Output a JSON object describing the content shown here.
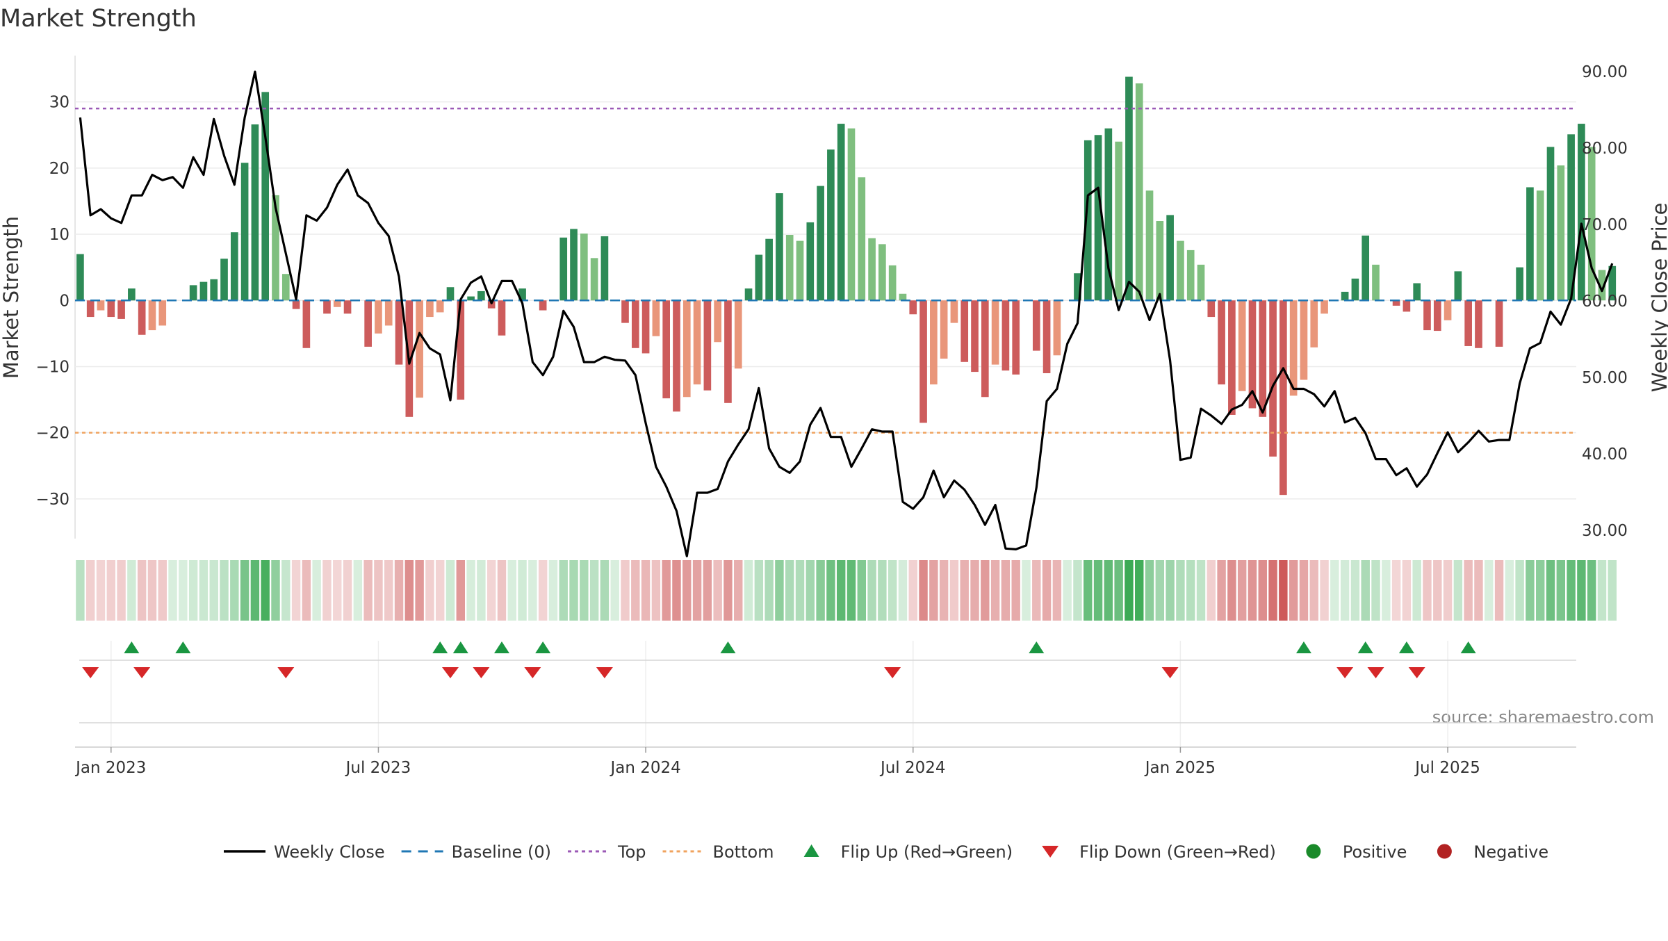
{
  "chart_data": {
    "type": "bar",
    "title": "Market Strength",
    "ylabel_left": "Market Strength",
    "ylabel_right": "Weekly Close Price",
    "left_ylim": [
      -36,
      37
    ],
    "left_ticks": [
      30,
      20,
      10,
      0,
      -10,
      -20,
      -30
    ],
    "left_tick_labels": [
      "30",
      "20",
      "10",
      "0",
      "−10",
      "−20",
      "−30"
    ],
    "right_ylim": [
      28.9,
      92.1
    ],
    "right_ticks": [
      90,
      80,
      70,
      60,
      50,
      40,
      30
    ],
    "right_tick_labels": [
      "90.00",
      "80.00",
      "70.00",
      "60.00",
      "50.00",
      "40.00",
      "30.00"
    ],
    "top_level": 29,
    "bottom_level": -20,
    "week_index_range": [
      -0.5,
      145.5
    ],
    "x_ticks": [
      {
        "label": "Jan 2023",
        "week": 3
      },
      {
        "label": "Jul 2023",
        "week": 29
      },
      {
        "label": "Jan 2024",
        "week": 55
      },
      {
        "label": "Jul 2024",
        "week": 81
      },
      {
        "label": "Jan 2025",
        "week": 107
      },
      {
        "label": "Jul 2025",
        "week": 133
      }
    ],
    "strength": [
      7,
      -2.5,
      -1.5,
      -2.5,
      -2.8,
      1.8,
      -5.2,
      -4.5,
      -3.8,
      0,
      0,
      2.3,
      2.8,
      3.2,
      6.3,
      10.3,
      20.8,
      26.6,
      31.5,
      15.9,
      4,
      -1.3,
      -7.2,
      0,
      -2,
      -1,
      -2,
      0,
      -7,
      -5,
      -3.8,
      -9.7,
      -17.6,
      -14.7,
      -2.5,
      -1.8,
      2,
      -15,
      0.6,
      1.4,
      -1.2,
      -5.3,
      0,
      1.8,
      0,
      -1.5,
      0,
      9.5,
      10.8,
      10.1,
      6.4,
      9.7,
      0,
      -3.4,
      -7.2,
      -8,
      -5.4,
      -14.8,
      -16.8,
      -14.6,
      -12.7,
      -13.6,
      -6.3,
      -15.5,
      -10.3,
      1.8,
      6.9,
      9.3,
      16.2,
      9.9,
      9,
      11.8,
      17.3,
      22.8,
      26.7,
      26,
      18.6,
      9.4,
      8.5,
      5.3,
      1,
      -2.1,
      -18.5,
      -12.7,
      -8.8,
      -3.4,
      -9.3,
      -10.8,
      -14.6,
      -9.7,
      -10.6,
      -11.2,
      0,
      -7.6,
      -11,
      -8.3,
      0,
      4.1,
      24.2,
      25,
      26,
      24,
      33.8,
      32.8,
      16.6,
      12,
      12.9,
      9,
      7.6,
      5.4,
      -2.5,
      -12.7,
      -17.3,
      -13.7,
      -16.3,
      -17.6,
      -23.6,
      -29.4,
      -14.4,
      -12,
      -7.1,
      -2,
      0,
      1.3,
      3.3,
      9.8,
      5.4,
      0,
      -0.8,
      -1.7,
      2.6,
      -4.5,
      -4.6,
      -3,
      4.4,
      -6.9,
      -7.2,
      0,
      -7,
      0,
      5,
      17.1,
      16.6,
      23.2,
      20.4,
      25.1,
      26.7,
      23.2,
      4.6,
      5.2
    ],
    "weekly_close": [
      84,
      71.2,
      72,
      70.8,
      70.2,
      73.8,
      73.8,
      76.5,
      75.8,
      76.2,
      74.8,
      78.8,
      76.5,
      83.8,
      79,
      75.2,
      84,
      90,
      81.5,
      72.2,
      66.2,
      60.2,
      71.2,
      70.5,
      72.2,
      75.2,
      77.2,
      73.8,
      72.8,
      70.2,
      68.5,
      63.2,
      51.8,
      55.8,
      53.8,
      53,
      47,
      60.2,
      62.4,
      63.2,
      59.7,
      62.6,
      62.6,
      59.7,
      52,
      50.3,
      52.7,
      58.7,
      56.6,
      52,
      52,
      52.7,
      52.3,
      52.2,
      50.3,
      44,
      38.3,
      35.7,
      32.5,
      26.6,
      34.9,
      34.9,
      35.4,
      39,
      41.2,
      43.2,
      48.6,
      40.7,
      38.3,
      37.5,
      39,
      43.8,
      46,
      42.2,
      42.2,
      38.3,
      40.7,
      43.2,
      42.9,
      42.9,
      33.7,
      32.8,
      34.3,
      37.8,
      34.3,
      36.5,
      35.3,
      33.3,
      30.7,
      33.3,
      27.6,
      27.5,
      28,
      35.6,
      46.9,
      48.5,
      54.4,
      57.1,
      73.8,
      74.8,
      64.3,
      58.8,
      62.5,
      61.2,
      57.5,
      60.9,
      52.2,
      39.2,
      39.5,
      45.9,
      45,
      43.9,
      45.8,
      46.4,
      48.2,
      45.4,
      48.9,
      51.2,
      48.5,
      48.5,
      47.8,
      46.2,
      48.2,
      44.1,
      44.7,
      42.7,
      39.3,
      39.3,
      37.2,
      38.1,
      35.7,
      37.3,
      40.1,
      42.8,
      40.2,
      41.5,
      43,
      41.6,
      41.8,
      41.8,
      49.2,
      53.8,
      54.5,
      58.6,
      56.9,
      60.3,
      70.1,
      64.3,
      61.3,
      64.9
    ],
    "strength_band": {
      "description": "strength heat strip, one cell per week, coloured by strength sign and magnitude",
      "values_source": "strength"
    },
    "flip_up_weeks": [
      5,
      10,
      35,
      37,
      41,
      45,
      63,
      93,
      119,
      125,
      129,
      135
    ],
    "flip_down_weeks": [
      1,
      6,
      20,
      36,
      39,
      44,
      51,
      79,
      106,
      123,
      126,
      130
    ],
    "legend": [
      {
        "key": "close",
        "label": "Weekly Close"
      },
      {
        "key": "baseline",
        "label": "Baseline (0)"
      },
      {
        "key": "top",
        "label": "Top"
      },
      {
        "key": "bottom",
        "label": "Bottom"
      },
      {
        "key": "flip_up",
        "label": "Flip Up (Red→Green)"
      },
      {
        "key": "flip_down",
        "label": "Flip Down (Green→Red)"
      },
      {
        "key": "positive",
        "label": "Positive"
      },
      {
        "key": "negative",
        "label": "Negative"
      }
    ],
    "legend_position": "bottom-center",
    "grid": true
  },
  "source_text": "source: sharemaestro.com",
  "colors": {
    "pos_strong": "#2e8b57",
    "pos_light": "#7fbf7f",
    "neg_strong": "#cd5c5c",
    "neg_light": "#e9967a",
    "close_line": "#000000",
    "baseline": "#1f77b4",
    "top": "#9b59b6",
    "bottom": "#f0a35e",
    "flip_up": "#1a9641",
    "flip_down": "#d62728",
    "positive": "#1a8a2a",
    "negative": "#b22222"
  }
}
